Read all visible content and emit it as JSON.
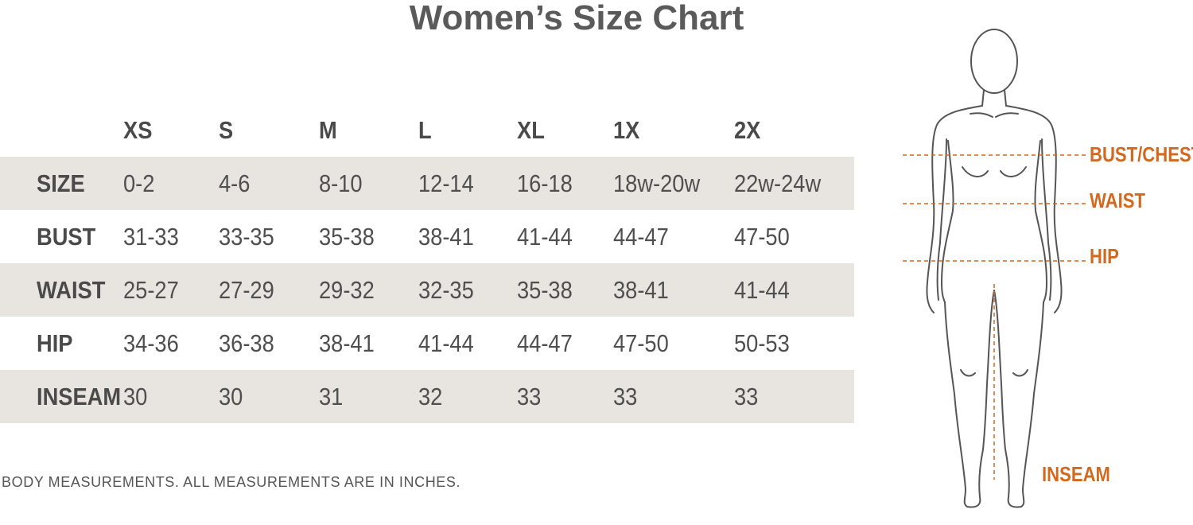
{
  "title": "Women’s Size Chart",
  "table": {
    "columns": [
      "XS",
      "S",
      "M",
      "L",
      "XL",
      "1X",
      "2X"
    ],
    "rows": [
      {
        "label": "SIZE",
        "values": [
          "0-2",
          "4-6",
          "8-10",
          "12-14",
          "16-18",
          "18w-20w",
          "22w-24w"
        ]
      },
      {
        "label": "BUST",
        "values": [
          "31-33",
          "33-35",
          "35-38",
          "38-41",
          "41-44",
          "44-47",
          "47-50"
        ]
      },
      {
        "label": "WAIST",
        "values": [
          "25-27",
          "27-29",
          "29-32",
          "32-35",
          "35-38",
          "38-41",
          "41-44"
        ]
      },
      {
        "label": "HIP",
        "values": [
          "34-36",
          "36-38",
          "38-41",
          "41-44",
          "44-47",
          "47-50",
          "50-53"
        ]
      },
      {
        "label": "INSEAM",
        "values": [
          "30",
          "30",
          "31",
          "32",
          "33",
          "33",
          "33"
        ]
      }
    ]
  },
  "note": "BODY MEASUREMENTS. ALL MEASUREMENTS ARE IN INCHES.",
  "figure": {
    "labels": {
      "bust": "BUST/CHEST",
      "waist": "WAIST",
      "hip": "HIP",
      "inseam": "INSEAM"
    }
  },
  "colors": {
    "accent": "#d2691e",
    "row_shade": "#e8e4df",
    "text": "#4f4f4f"
  }
}
